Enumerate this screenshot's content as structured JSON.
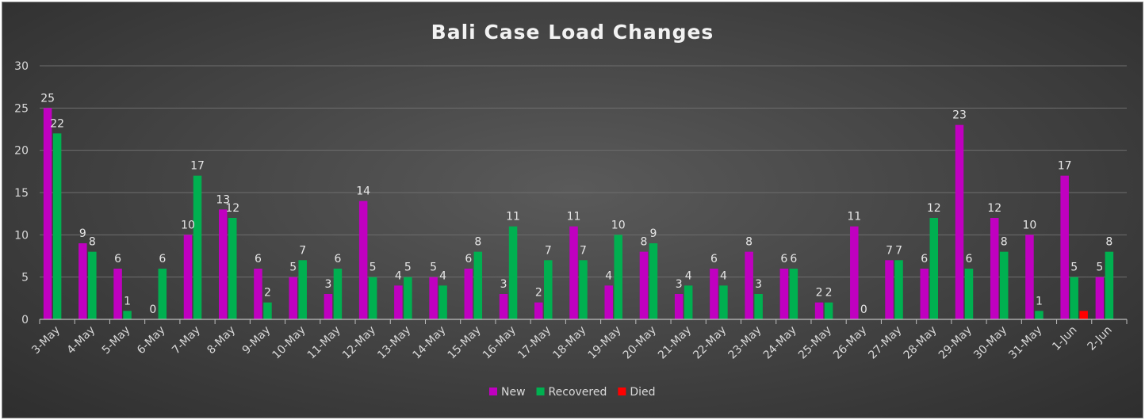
{
  "chart_data": {
    "type": "bar",
    "title": "Bali Case Load Changes",
    "categories": [
      "3-May",
      "4-May",
      "5-May",
      "6-May",
      "7-May",
      "8-May",
      "9-May",
      "10-May",
      "11-May",
      "12-May",
      "13-May",
      "14-May",
      "15-May",
      "16-May",
      "17-May",
      "18-May",
      "19-May",
      "20-May",
      "21-May",
      "22-May",
      "23-May",
      "24-May",
      "25-May",
      "26-May",
      "27-May",
      "28-May",
      "29-May",
      "30-May",
      "31-May",
      "1-Jun",
      "2-Jun"
    ],
    "series": [
      {
        "name": "New",
        "color": "#c000c0",
        "values": [
          25,
          9,
          6,
          0,
          10,
          13,
          6,
          5,
          3,
          14,
          4,
          5,
          6,
          3,
          2,
          11,
          4,
          8,
          3,
          6,
          8,
          6,
          2,
          11,
          7,
          6,
          23,
          12,
          10,
          17,
          5
        ]
      },
      {
        "name": "Recovered",
        "color": "#00b050",
        "values": [
          22,
          8,
          1,
          6,
          17,
          12,
          2,
          7,
          6,
          5,
          5,
          4,
          8,
          11,
          7,
          7,
          10,
          9,
          4,
          4,
          3,
          6,
          2,
          0,
          7,
          12,
          6,
          8,
          1,
          5,
          8
        ]
      },
      {
        "name": "Died",
        "color": "#ff0000",
        "values": [
          0,
          0,
          0,
          0,
          0,
          0,
          0,
          0,
          0,
          0,
          0,
          0,
          0,
          0,
          0,
          0,
          0,
          0,
          0,
          0,
          0,
          0,
          0,
          0,
          0,
          0,
          0,
          0,
          0,
          1,
          0
        ]
      }
    ],
    "data_labels": {
      "New": [
        25,
        9,
        6,
        0,
        10,
        13,
        6,
        5,
        3,
        14,
        4,
        5,
        6,
        3,
        2,
        11,
        4,
        8,
        3,
        6,
        8,
        6,
        2,
        11,
        7,
        6,
        23,
        12,
        10,
        17,
        5
      ],
      "Recovered": [
        22,
        8,
        1,
        6,
        17,
        12,
        2,
        7,
        6,
        5,
        5,
        4,
        8,
        11,
        7,
        7,
        10,
        9,
        4,
        4,
        3,
        6,
        2,
        0,
        7,
        12,
        6,
        8,
        1,
        5,
        8
      ],
      "Died": [
        null,
        null,
        null,
        null,
        null,
        null,
        null,
        null,
        null,
        null,
        null,
        null,
        null,
        null,
        null,
        null,
        null,
        null,
        null,
        null,
        null,
        null,
        null,
        null,
        null,
        null,
        null,
        null,
        null,
        null,
        null
      ]
    },
    "ylim": [
      0,
      30
    ],
    "yticks": [
      0,
      5,
      10,
      15,
      20,
      25,
      30
    ],
    "grid": true,
    "legend": "bottom"
  }
}
